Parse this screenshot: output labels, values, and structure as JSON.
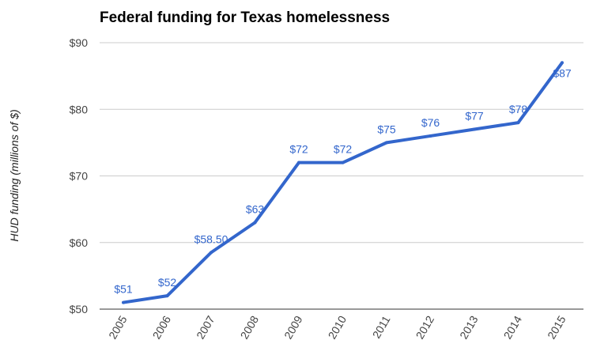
{
  "chart_data": {
    "type": "line",
    "title": "Federal funding for Texas homelessness",
    "xlabel": "",
    "ylabel": "HUD funding (millions of $)",
    "categories": [
      "2005",
      "2006",
      "2007",
      "2008",
      "2009",
      "2010",
      "2011",
      "2012",
      "2013",
      "2014",
      "2015"
    ],
    "values": [
      51,
      52,
      58.5,
      63,
      72,
      72,
      75,
      76,
      77,
      78,
      87
    ],
    "data_labels": [
      "$51",
      "$52",
      "$58.50",
      "$63",
      "$72",
      "$72",
      "$75",
      "$76",
      "$77",
      "$78",
      "$87"
    ],
    "ylim": [
      50,
      90
    ],
    "yticks": [
      50,
      60,
      70,
      80,
      90
    ],
    "ytick_labels": [
      "$50",
      "$60",
      "$70",
      "$80",
      "$90"
    ],
    "grid": true,
    "legend": "none",
    "line_color": "#3366cc"
  }
}
